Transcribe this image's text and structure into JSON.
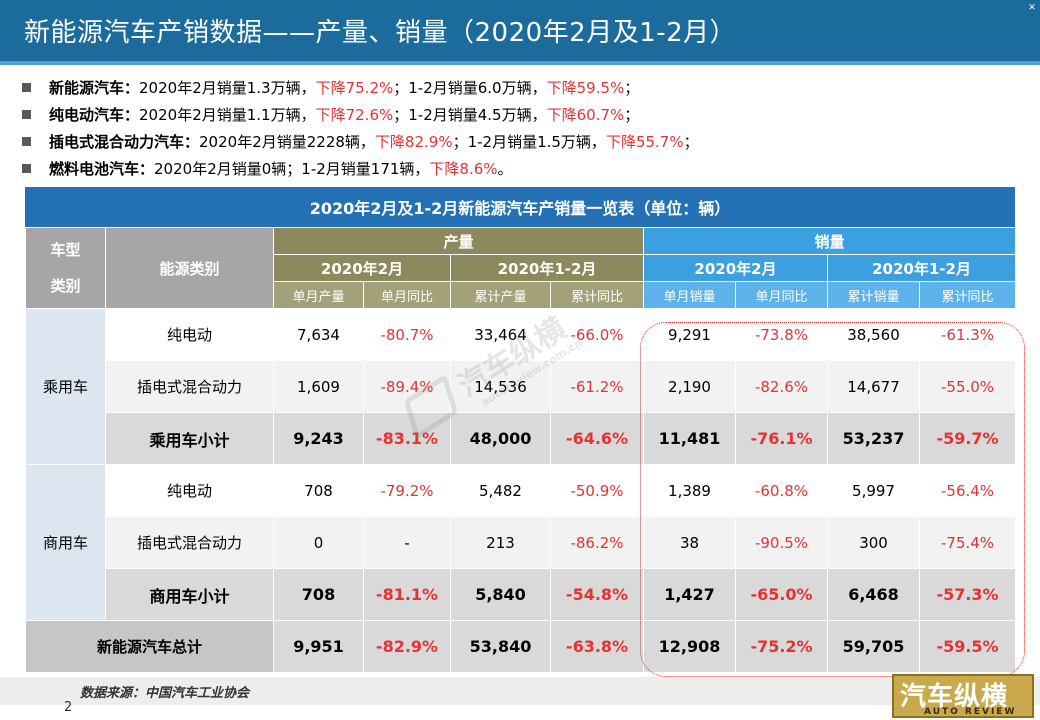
{
  "title": "新能源汽车产销数据——产量、销量（2020年2月及1-2月）",
  "bullets": [
    {
      "label": "新能源汽车：",
      "p1": "2020年2月销量1.3万辆，",
      "r1": "下降75.2%",
      "p2": "；1-2月销量6.0万辆，",
      "r2": "下降59.5%",
      "end": "；"
    },
    {
      "label": "纯电动汽车：",
      "p1": "2020年2月销量1.1万辆，",
      "r1": "下降72.6%",
      "p2": "；1-2月销量4.5万辆，",
      "r2": "下降60.7%",
      "end": "；"
    },
    {
      "label": "插电式混合动力汽车：",
      "p1": "2020年2月销量2228辆，",
      "r1": "下降82.9%",
      "p2": "；1-2月销量1.5万辆，",
      "r2": "下降55.7%",
      "end": "；"
    },
    {
      "label": "燃料电池汽车：",
      "p1": "2020年2月销量0辆；1-2月销量171辆，",
      "r1": "下降8.6%",
      "p2": "",
      "r2": "",
      "end": "。"
    }
  ],
  "table": {
    "caption": "2020年2月及1-2月新能源汽车产销量一览表（单位：辆）",
    "h_vehicle_type_1": "车型",
    "h_vehicle_type_2": "类别",
    "h_energy": "能源类别",
    "h_production": "产量",
    "h_sales": "销量",
    "h_feb": "2020年2月",
    "h_janfeb": "2020年1-2月",
    "h_month_prod": "单月产量",
    "h_month_yoy": "单月同比",
    "h_cum_prod": "累计产量",
    "h_cum_yoy": "累计同比",
    "h_month_sales": "单月销量",
    "h_cum_sales": "累计销量",
    "groups": [
      {
        "name": "乘用车",
        "rows": [
          {
            "label": "纯电动",
            "v": [
              "7,634",
              "-80.7%",
              "33,464",
              "-66.0%",
              "9,291",
              "-73.8%",
              "38,560",
              "-61.3%"
            ]
          },
          {
            "label": "插电式混合动力",
            "v": [
              "1,609",
              "-89.4%",
              "14,536",
              "-61.2%",
              "2,190",
              "-82.6%",
              "14,677",
              "-55.0%"
            ]
          },
          {
            "label": "乘用车小计",
            "v": [
              "9,243",
              "-83.1%",
              "48,000",
              "-64.6%",
              "11,481",
              "-76.1%",
              "53,237",
              "-59.7%"
            ]
          }
        ]
      },
      {
        "name": "商用车",
        "rows": [
          {
            "label": "纯电动",
            "v": [
              "708",
              "-79.2%",
              "5,482",
              "-50.9%",
              "1,389",
              "-60.8%",
              "5,997",
              "-56.4%"
            ]
          },
          {
            "label": "插电式混合动力",
            "v": [
              "0",
              "-",
              "213",
              "-86.2%",
              "38",
              "-90.5%",
              "300",
              "-75.4%"
            ]
          },
          {
            "label": "商用车小计",
            "v": [
              "708",
              "-81.1%",
              "5,840",
              "-54.8%",
              "1,427",
              "-65.0%",
              "6,468",
              "-57.3%"
            ]
          }
        ]
      }
    ],
    "total": {
      "label": "新能源汽车总计",
      "v": [
        "9,951",
        "-82.9%",
        "53,840",
        "-63.8%",
        "12,908",
        "-75.2%",
        "59,705",
        "-59.5%"
      ]
    }
  },
  "watermark": {
    "text": "汽车纵横",
    "sub": "autoreview.com.cn"
  },
  "footer": {
    "source": "数据来源：中国汽车工业协会",
    "page": "2"
  },
  "logo": {
    "text": "汽车纵横",
    "sub": "AUTO REVIEW"
  },
  "colors": {
    "title_bg": "#1c6b9d",
    "negative": "#e53333",
    "production_header": "#8c8a5c",
    "sales_header": "#3b9fe0"
  }
}
